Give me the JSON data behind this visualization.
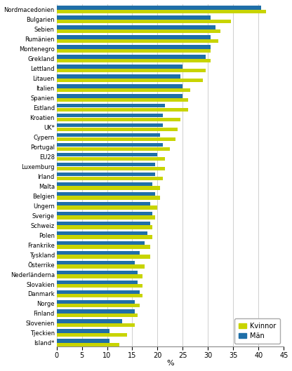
{
  "countries": [
    "Nordmacedonien",
    "Bulgarien",
    "Sebien",
    "Rumänien",
    "Montenegro",
    "Grekland",
    "Lettland",
    "Litauen",
    "Italien",
    "Spanien",
    "Estland",
    "Kroatien",
    "UK*",
    "Cypern",
    "Portugal",
    "EU28",
    "Luxemburg",
    "Irland",
    "Malta",
    "Belgien",
    "Ungern",
    "Sverige",
    "Schweiz",
    "Polen",
    "Frankrike",
    "Tyskland",
    "Österrike",
    "Nederländerna",
    "Slovakien",
    "Danmark",
    "Norge",
    "Finland",
    "Slovenien",
    "Tjeckien",
    "Island*"
  ],
  "kvinnor": [
    41.5,
    34.5,
    32.5,
    32.0,
    30.5,
    30.5,
    29.5,
    29.0,
    26.5,
    26.0,
    26.0,
    24.5,
    24.0,
    23.5,
    22.5,
    21.5,
    21.5,
    21.0,
    20.5,
    20.5,
    20.0,
    19.5,
    19.0,
    19.0,
    18.5,
    18.5,
    17.5,
    17.0,
    17.0,
    17.0,
    16.5,
    16.0,
    15.5,
    14.0,
    12.5
  ],
  "man": [
    40.5,
    30.5,
    31.5,
    30.5,
    30.5,
    29.5,
    25.0,
    24.5,
    25.0,
    25.0,
    21.5,
    21.0,
    21.0,
    20.5,
    21.0,
    20.0,
    19.5,
    19.5,
    19.0,
    19.5,
    18.5,
    19.0,
    18.5,
    18.0,
    17.5,
    16.5,
    15.5,
    16.0,
    16.0,
    16.5,
    15.5,
    15.5,
    13.0,
    10.5,
    10.5
  ],
  "color_kvinnor": "#c8d400",
  "color_man": "#1f6fa8",
  "xlabel": "%",
  "xlim": [
    0,
    45
  ],
  "xticks": [
    0,
    5,
    10,
    15,
    20,
    25,
    30,
    35,
    40,
    45
  ],
  "legend_kvinnor": "Kvinnor",
  "legend_man": "Män",
  "background_color": "#ffffff",
  "grid_color": "#c8c8c8"
}
